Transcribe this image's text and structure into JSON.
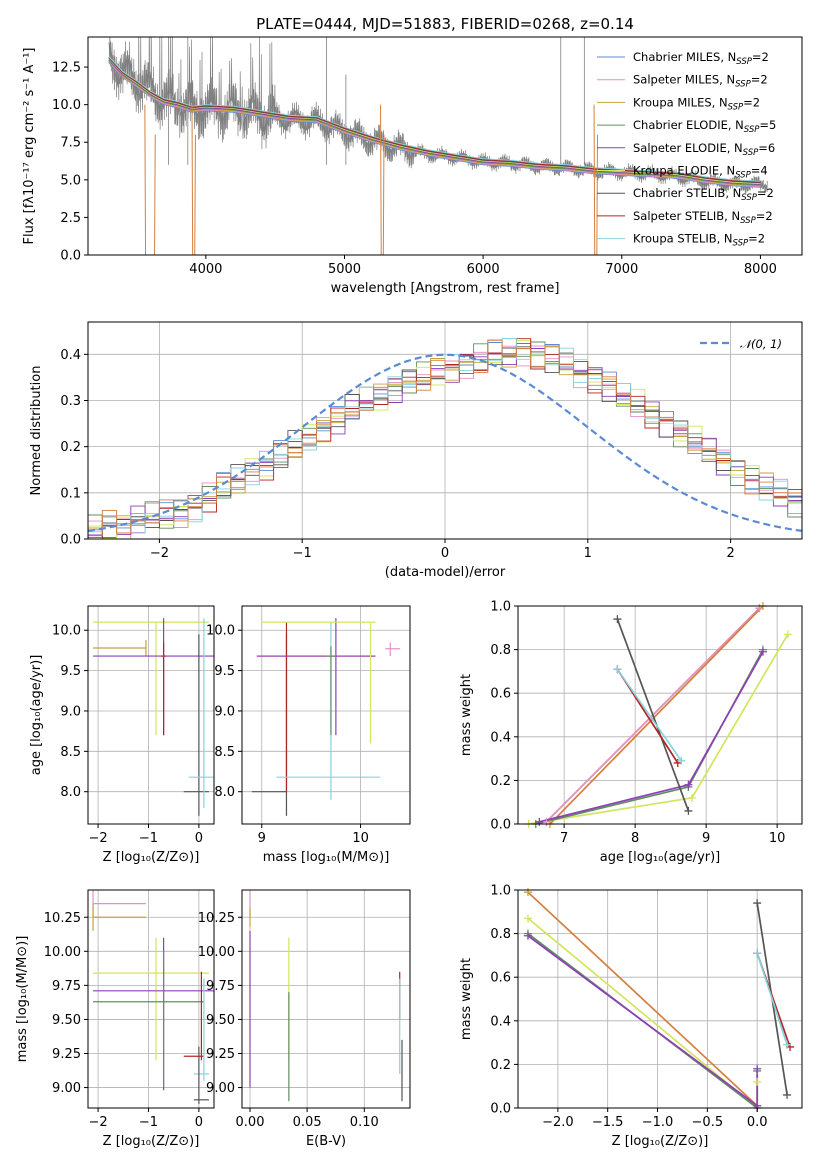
{
  "figure": {
    "title": "PLATE=0444, MJD=51883, FIBERID=0268, z=0.14"
  },
  "chart_data": [
    {
      "id": "spectrum",
      "type": "line",
      "title": "PLATE=0444, MJD=51883, FIBERID=0268, z=0.14",
      "xlabel": "wavelength [Angstrom, rest frame]",
      "ylabel": "Flux [fλ10⁻¹⁷ erg cm⁻² s⁻¹ A⁻¹]",
      "xlim": [
        3150,
        8300
      ],
      "ylim": [
        0,
        14.5
      ],
      "xticks": [
        4000,
        5000,
        6000,
        7000,
        8000
      ],
      "yticks": [
        0.0,
        2.5,
        5.0,
        7.5,
        10.0,
        12.5
      ],
      "grid": false,
      "legend_position": "right",
      "data_color": "#808080",
      "data_x": [
        3300,
        3400,
        3500,
        3600,
        3700,
        3800,
        3900,
        4000,
        4200,
        4400,
        4600,
        4800,
        5000,
        5200,
        5400,
        5600,
        5800,
        6000,
        6200,
        6400,
        6600,
        6800,
        7000,
        7200,
        7400,
        7600,
        7800,
        8000
      ],
      "data_y": [
        13.2,
        12.2,
        11.6,
        11.0,
        10.3,
        10.0,
        9.6,
        9.7,
        9.6,
        9.3,
        9.0,
        8.9,
        8.2,
        7.6,
        7.1,
        6.7,
        6.5,
        6.2,
        6.1,
        5.9,
        5.8,
        5.6,
        5.5,
        5.4,
        5.2,
        4.9,
        4.7,
        4.7
      ],
      "model_y": [
        13.0,
        12.0,
        11.4,
        10.7,
        10.2,
        10.0,
        9.7,
        9.8,
        9.7,
        9.4,
        9.1,
        9.0,
        8.3,
        7.7,
        7.2,
        6.8,
        6.5,
        6.2,
        6.1,
        5.9,
        5.8,
        5.6,
        5.5,
        5.4,
        5.3,
        5.0,
        4.8,
        4.7
      ],
      "series": [
        {
          "name": "Chabrier MILES, N_SSP=2",
          "color": "#5b8bd6"
        },
        {
          "name": "Salpeter MILES, N_SSP=2",
          "color": "#e58fc9"
        },
        {
          "name": "Kroupa MILES, N_SSP=2",
          "color": "#c7a23a"
        },
        {
          "name": "Chabrier ELODIE, N_SSP=5",
          "color": "#5f8f5f"
        },
        {
          "name": "Salpeter ELODIE, N_SSP=6",
          "color": "#8e3fb8"
        },
        {
          "name": "Kroupa ELODIE, N_SSP=4",
          "color": "#d4e45c"
        },
        {
          "name": "Chabrier STELIB, N_SSP=2",
          "color": "#555555"
        },
        {
          "name": "Salpeter STELIB, N_SSP=2",
          "color": "#b52424"
        },
        {
          "name": "Kroupa STELIB, N_SSP=2",
          "color": "#86d3dc"
        }
      ]
    },
    {
      "id": "residuals",
      "type": "line",
      "xlabel": "(data-model)/error",
      "ylabel": "Normed distribution",
      "xlim": [
        -2.5,
        2.5
      ],
      "ylim": [
        0,
        0.47
      ],
      "xticks": [
        -2,
        -1,
        0,
        1,
        2
      ],
      "yticks": [
        0.0,
        0.1,
        0.2,
        0.3,
        0.4
      ],
      "grid": true,
      "legend_position": "top-right",
      "reference": {
        "name": "𝒩(0, 1)",
        "color": "#5b8bd6",
        "dashed": true
      },
      "bin_width": 0.1,
      "histogram_base": [
        0.02,
        0.03,
        0.03,
        0.04,
        0.05,
        0.05,
        0.06,
        0.07,
        0.09,
        0.11,
        0.13,
        0.15,
        0.16,
        0.18,
        0.2,
        0.22,
        0.24,
        0.26,
        0.28,
        0.3,
        0.31,
        0.33,
        0.34,
        0.35,
        0.36,
        0.37,
        0.38,
        0.39,
        0.4,
        0.4,
        0.41,
        0.4,
        0.39,
        0.38,
        0.36,
        0.35,
        0.33,
        0.31,
        0.29,
        0.27,
        0.25,
        0.23,
        0.21,
        0.19,
        0.17,
        0.15,
        0.13,
        0.11,
        0.1,
        0.08
      ]
    },
    {
      "id": "age-vs-Z",
      "type": "scatter",
      "xlabel": "Z [log₁₀(Z/Z⊙)]",
      "ylabel": "age  [log₁₀(age/yr)]",
      "xlim": [
        -2.2,
        0.3
      ],
      "ylim": [
        7.6,
        10.3
      ],
      "xticks": [
        -2,
        -1,
        0
      ],
      "yticks": [
        8.0,
        8.5,
        9.0,
        9.5,
        10.0
      ],
      "grid": true,
      "crosses": [
        {
          "color": "#c7a23a",
          "x": -1.05,
          "y": 9.78,
          "dx": [
            -2.1,
            -1.05
          ],
          "dy": [
            9.68,
            9.88
          ]
        },
        {
          "color": "#d4e45c",
          "x": -0.85,
          "y": 10.1,
          "dx": [
            -2.1,
            0.2
          ],
          "dy": [
            8.7,
            10.1
          ]
        },
        {
          "color": "#8e3fb8",
          "x": -0.7,
          "y": 9.68,
          "dx": [
            -2.1,
            0.3
          ],
          "dy": [
            8.7,
            10.15
          ]
        },
        {
          "color": "#555555",
          "x": 0.0,
          "y": 8.0,
          "dx": [
            -0.3,
            0.2
          ],
          "dy": [
            7.7,
            9.95
          ]
        },
        {
          "color": "#86d3dc",
          "x": 0.1,
          "y": 8.18,
          "dx": [
            -0.2,
            0.3
          ],
          "dy": [
            7.8,
            10.15
          ]
        },
        {
          "color": "#b52424",
          "x": -0.7,
          "y": 9.68,
          "dx": [
            -0.75,
            -0.65
          ],
          "dy": [
            8.7,
            9.85
          ]
        }
      ]
    },
    {
      "id": "age-vs-mass",
      "type": "scatter",
      "xlabel": "mass [log₁₀(M/M⊙)]",
      "xlim": [
        8.8,
        10.5
      ],
      "ylim": [
        7.6,
        10.3
      ],
      "xticks": [
        9,
        10
      ],
      "yticks": [
        8.0,
        8.5,
        9.0,
        9.5,
        10.0
      ],
      "grid": true,
      "crosses": [
        {
          "color": "#555555",
          "x": 9.25,
          "y": 8.0,
          "dx": [
            8.9,
            9.25
          ],
          "dy": [
            7.7,
            9.95
          ]
        },
        {
          "color": "#b52424",
          "x": 9.25,
          "y": 9.68,
          "dx": [
            8.95,
            10.15
          ],
          "dy": [
            8.0,
            10.1
          ]
        },
        {
          "color": "#86d3dc",
          "x": 9.7,
          "y": 8.18,
          "dx": [
            9.15,
            10.2
          ],
          "dy": [
            7.9,
            10.1
          ]
        },
        {
          "color": "#8e3fb8",
          "x": 9.75,
          "y": 9.68,
          "dx": [
            8.95,
            10.15
          ],
          "dy": [
            8.7,
            10.15
          ]
        },
        {
          "color": "#d4e45c",
          "x": 10.1,
          "y": 10.1,
          "dx": [
            9.0,
            10.15
          ],
          "dy": [
            8.6,
            10.1
          ]
        },
        {
          "color": "#e58fc9",
          "x": 10.3,
          "y": 9.77,
          "dx": [
            10.25,
            10.4
          ],
          "dy": [
            9.68,
            9.85
          ]
        },
        {
          "color": "#5f8f5f",
          "x": 9.7,
          "y": 9.68,
          "dx": [
            9.65,
            9.75
          ],
          "dy": [
            8.7,
            9.8
          ]
        }
      ]
    },
    {
      "id": "weight-vs-age",
      "type": "line",
      "xlabel": "age  [log₁₀(age/yr)]",
      "ylabel": "mass weight",
      "xlim": [
        6.35,
        10.35
      ],
      "ylim": [
        0,
        1
      ],
      "xticks": [
        7,
        8,
        9,
        10
      ],
      "yticks": [
        0.0,
        0.2,
        0.4,
        0.6,
        0.8,
        1.0
      ],
      "grid": true,
      "series": [
        {
          "color": "#c7a23a",
          "x": [
            6.75,
            9.75
          ],
          "y": [
            0.01,
            0.99
          ]
        },
        {
          "color": "#e58fc9",
          "x": [
            6.75,
            9.75
          ],
          "y": [
            0.01,
            0.99
          ]
        },
        {
          "color": "#d48040",
          "x": [
            6.8,
            9.8
          ],
          "y": [
            0.0,
            1.0
          ]
        },
        {
          "color": "#d4e45c",
          "x": [
            6.5,
            8.8,
            10.15
          ],
          "y": [
            0.0,
            0.12,
            0.87
          ]
        },
        {
          "color": "#5f8f5f",
          "x": [
            6.6,
            8.75,
            9.8
          ],
          "y": [
            0.0,
            0.17,
            0.8
          ]
        },
        {
          "color": "#8e3fb8",
          "x": [
            6.65,
            8.75,
            9.8
          ],
          "y": [
            0.01,
            0.18,
            0.79
          ]
        },
        {
          "color": "#555555",
          "x": [
            7.75,
            8.75
          ],
          "y": [
            0.94,
            0.06
          ]
        },
        {
          "color": "#b52424",
          "x": [
            7.75,
            8.6
          ],
          "y": [
            0.71,
            0.28
          ]
        },
        {
          "color": "#86d3dc",
          "x": [
            7.75,
            8.65
          ],
          "y": [
            0.71,
            0.29
          ]
        }
      ]
    },
    {
      "id": "mass-vs-Z",
      "type": "scatter",
      "xlabel": "Z [log₁₀(Z/Z⊙)]",
      "ylabel": "mass [log₁₀(M/M⊙)]",
      "xlim": [
        -2.2,
        0.3
      ],
      "ylim": [
        8.85,
        10.45
      ],
      "xticks": [
        -2,
        -1,
        0
      ],
      "yticks": [
        9.0,
        9.25,
        9.5,
        9.75,
        10.0,
        10.25
      ],
      "grid": true,
      "crosses": [
        {
          "color": "#e58fc9",
          "x": -2.1,
          "y": 10.35,
          "dx": [
            -2.1,
            -1.05
          ],
          "dy": [
            10.25,
            10.45
          ]
        },
        {
          "color": "#c7a23a",
          "x": -2.1,
          "y": 10.25,
          "dx": [
            -2.1,
            -1.05
          ],
          "dy": [
            10.15,
            10.35
          ]
        },
        {
          "color": "#d4e45c",
          "x": -0.85,
          "y": 9.84,
          "dx": [
            -2.1,
            0.2
          ],
          "dy": [
            9.2,
            10.1
          ]
        },
        {
          "color": "#8e3fb8",
          "x": -0.7,
          "y": 9.71,
          "dx": [
            -2.1,
            0.3
          ],
          "dy": [
            8.98,
            10.1
          ]
        },
        {
          "color": "#5f8f5f",
          "x": -0.7,
          "y": 9.63,
          "dx": [
            -2.1,
            0.1
          ],
          "dy": [
            9.0,
            10.0
          ]
        },
        {
          "color": "#b52424",
          "x": 0.05,
          "y": 9.23,
          "dx": [
            -0.3,
            0.1
          ],
          "dy": [
            9.2,
            9.85
          ]
        },
        {
          "color": "#86d3dc",
          "x": 0.1,
          "y": 9.1,
          "dx": [
            -0.1,
            0.2
          ],
          "dy": [
            9.05,
            9.8
          ]
        },
        {
          "color": "#555555",
          "x": 0.0,
          "y": 8.91,
          "dx": [
            -0.1,
            0.2
          ],
          "dy": [
            8.88,
            9.3
          ]
        }
      ]
    },
    {
      "id": "mass-vs-ebv",
      "type": "scatter",
      "xlabel": "E(B-V)",
      "xlim": [
        -0.007,
        0.14
      ],
      "ylim": [
        8.85,
        10.45
      ],
      "xticks": [
        0.0,
        0.05,
        0.1
      ],
      "yticks": [
        9.0,
        9.25,
        9.5,
        9.75,
        10.0,
        10.25
      ],
      "grid": true,
      "crosses": [
        {
          "color": "#e58fc9",
          "x": 0.0,
          "y": 10.35,
          "dx": [
            0.0,
            0.0
          ],
          "dy": [
            10.25,
            10.45
          ]
        },
        {
          "color": "#c7a23a",
          "x": 0.0,
          "y": 10.25,
          "dx": [
            0.0,
            0.0
          ],
          "dy": [
            10.18,
            10.32
          ]
        },
        {
          "color": "#8e3fb8",
          "x": 0.0,
          "y": 9.7,
          "dx": [
            0.0,
            0.0
          ],
          "dy": [
            9.0,
            10.15
          ]
        },
        {
          "color": "#d4e45c",
          "x": 0.034,
          "y": 9.84,
          "dx": [
            0.034,
            0.034
          ],
          "dy": [
            9.2,
            10.1
          ]
        },
        {
          "color": "#5f8f5f",
          "x": 0.034,
          "y": 9.6,
          "dx": [
            0.034,
            0.034
          ],
          "dy": [
            8.9,
            9.7
          ]
        },
        {
          "color": "#b52424",
          "x": 0.131,
          "y": 9.8,
          "dx": [
            0.131,
            0.131
          ],
          "dy": [
            9.5,
            9.85
          ]
        },
        {
          "color": "#86d3dc",
          "x": 0.131,
          "y": 9.4,
          "dx": [
            0.131,
            0.131
          ],
          "dy": [
            9.1,
            9.8
          ]
        },
        {
          "color": "#555555",
          "x": 0.133,
          "y": 9.1,
          "dx": [
            0.133,
            0.133
          ],
          "dy": [
            8.9,
            9.35
          ]
        }
      ]
    },
    {
      "id": "weight-vs-Z",
      "type": "line",
      "xlabel": "Z [log₁₀(Z/Z⊙)]",
      "ylabel": "mass weight",
      "xlim": [
        -2.4,
        0.45
      ],
      "ylim": [
        0,
        1
      ],
      "xticks": [
        -2.0,
        -1.5,
        -1.0,
        -0.5,
        0.0
      ],
      "yticks": [
        0.0,
        0.2,
        0.4,
        0.6,
        0.8,
        1.0
      ],
      "grid": true,
      "series": [
        {
          "color": "#d48040",
          "x": [
            -2.3,
            0.0
          ],
          "y": [
            0.99,
            0.01
          ]
        },
        {
          "color": "#d4e45c",
          "x": [
            -2.3,
            0.0,
            0.0
          ],
          "y": [
            0.87,
            0.0,
            0.12
          ]
        },
        {
          "color": "#5f8f5f",
          "x": [
            -2.3,
            0.0,
            0.0
          ],
          "y": [
            0.8,
            0.0,
            0.17
          ]
        },
        {
          "color": "#8e3fb8",
          "x": [
            -2.3,
            0.0,
            0.0
          ],
          "y": [
            0.79,
            0.01,
            0.18
          ]
        },
        {
          "color": "#555555",
          "x": [
            0.0,
            0.3
          ],
          "y": [
            0.94,
            0.06
          ]
        },
        {
          "color": "#b52424",
          "x": [
            0.0,
            0.33
          ],
          "y": [
            0.71,
            0.28
          ]
        },
        {
          "color": "#86d3dc",
          "x": [
            0.0,
            0.3
          ],
          "y": [
            0.71,
            0.29
          ]
        }
      ]
    }
  ]
}
